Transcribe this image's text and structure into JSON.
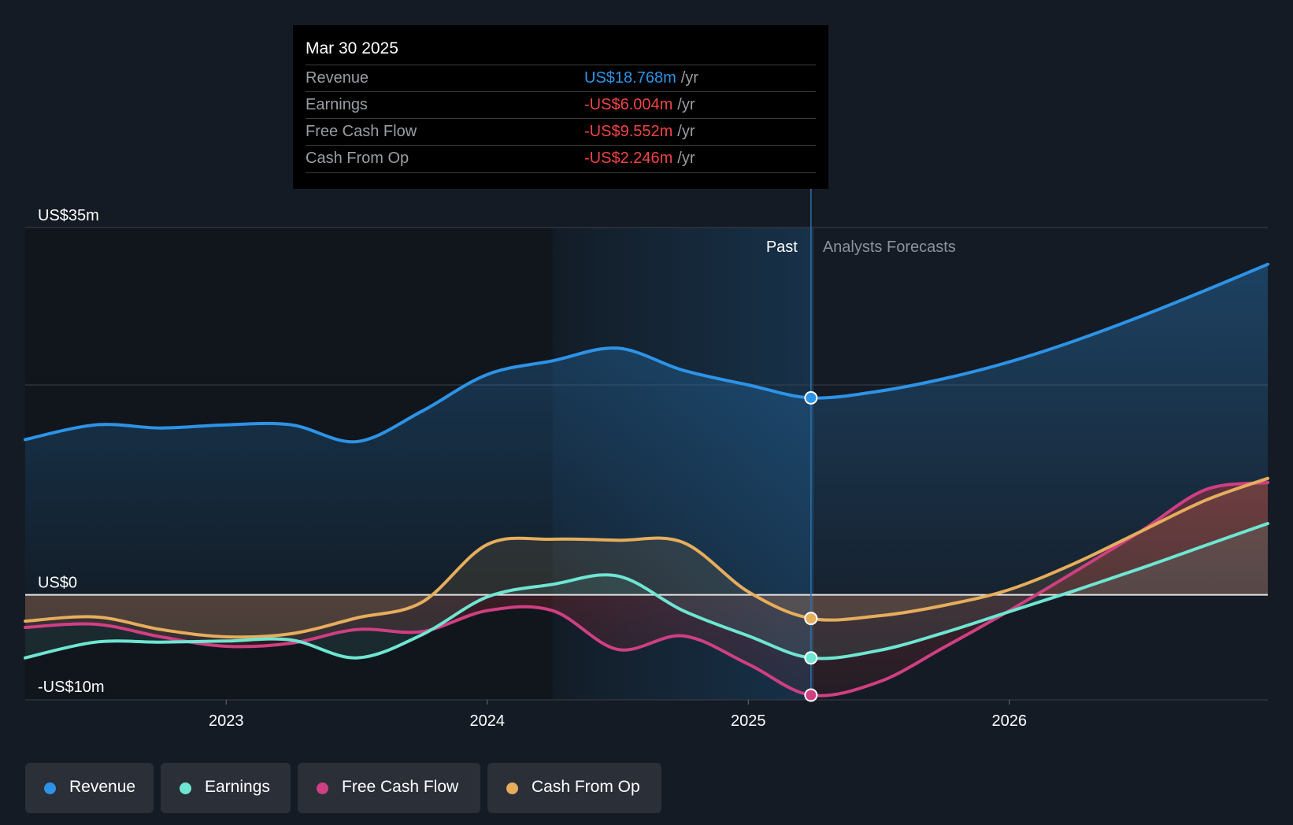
{
  "tooltip": {
    "date": "Mar 30 2025",
    "rows": [
      {
        "label": "Revenue",
        "value": "US$18.768m",
        "unit": "/yr",
        "tone": "blue"
      },
      {
        "label": "Earnings",
        "value": "-US$6.004m",
        "unit": "/yr",
        "tone": "red"
      },
      {
        "label": "Free Cash Flow",
        "value": "-US$9.552m",
        "unit": "/yr",
        "tone": "red"
      },
      {
        "label": "Cash From Op",
        "value": "-US$2.246m",
        "unit": "/yr",
        "tone": "red"
      }
    ]
  },
  "legend": {
    "items": [
      {
        "label": "Revenue",
        "color": "#2d93e6"
      },
      {
        "label": "Earnings",
        "color": "#6ee6d2"
      },
      {
        "label": "Free Cash Flow",
        "color": "#cf3f82"
      },
      {
        "label": "Cash From Op",
        "color": "#e6ad5c"
      }
    ]
  },
  "chart_data": {
    "type": "line",
    "title": "",
    "xlabel": "",
    "ylabel": "",
    "y_tick_labels": [
      "US$35m",
      "US$0",
      "-US$10m"
    ],
    "ylim": [
      -10,
      35
    ],
    "xlim": [
      2022.23,
      2026.99
    ],
    "x_ticks": [
      2023,
      2024,
      2025,
      2026
    ],
    "x_tick_labels": [
      "2023",
      "2024",
      "2025",
      "2026"
    ],
    "past_label": "Past",
    "forecast_label": "Analysts Forecasts",
    "highlight_range": [
      2024.25,
      2025.25
    ],
    "divider_x": 2025.24,
    "marker_x": 2025.24,
    "colors": {
      "revenue": "#2d93e6",
      "earnings": "#6ee6d2",
      "free_cash_flow": "#cf3f82",
      "cash_from_op": "#e6ad5c",
      "negative_fill": "#8c2a30"
    },
    "series": [
      {
        "key": "revenue",
        "name": "Revenue",
        "points": [
          [
            2022.23,
            14.8
          ],
          [
            2022.5,
            16.2
          ],
          [
            2022.75,
            15.9
          ],
          [
            2023.0,
            16.2
          ],
          [
            2023.25,
            16.2
          ],
          [
            2023.5,
            14.6
          ],
          [
            2023.75,
            17.5
          ],
          [
            2024.0,
            21.0
          ],
          [
            2024.25,
            22.3
          ],
          [
            2024.5,
            23.5
          ],
          [
            2024.75,
            21.4
          ],
          [
            2025.0,
            20.0
          ],
          [
            2025.24,
            18.768
          ],
          [
            2025.5,
            19.4
          ],
          [
            2025.75,
            20.6
          ],
          [
            2026.0,
            22.2
          ],
          [
            2026.25,
            24.2
          ],
          [
            2026.5,
            26.5
          ],
          [
            2026.75,
            29.0
          ],
          [
            2026.99,
            31.5
          ]
        ]
      },
      {
        "key": "earnings",
        "name": "Earnings",
        "points": [
          [
            2022.23,
            -6.0
          ],
          [
            2022.5,
            -4.5
          ],
          [
            2022.75,
            -4.5
          ],
          [
            2023.0,
            -4.4
          ],
          [
            2023.25,
            -4.3
          ],
          [
            2023.5,
            -6.0
          ],
          [
            2023.75,
            -3.8
          ],
          [
            2024.0,
            -0.2
          ],
          [
            2024.25,
            1.0
          ],
          [
            2024.5,
            1.8
          ],
          [
            2024.75,
            -1.5
          ],
          [
            2025.0,
            -3.9
          ],
          [
            2025.24,
            -6.004
          ],
          [
            2025.5,
            -5.3
          ],
          [
            2025.75,
            -3.6
          ],
          [
            2026.0,
            -1.6
          ],
          [
            2026.25,
            0.4
          ],
          [
            2026.5,
            2.5
          ],
          [
            2026.75,
            4.7
          ],
          [
            2026.99,
            6.8
          ]
        ]
      },
      {
        "key": "free_cash_flow",
        "name": "Free Cash Flow",
        "points": [
          [
            2022.23,
            -3.1
          ],
          [
            2022.5,
            -2.8
          ],
          [
            2022.75,
            -4.0
          ],
          [
            2023.0,
            -4.9
          ],
          [
            2023.25,
            -4.6
          ],
          [
            2023.5,
            -3.3
          ],
          [
            2023.75,
            -3.5
          ],
          [
            2024.0,
            -1.5
          ],
          [
            2024.25,
            -1.5
          ],
          [
            2024.5,
            -5.2
          ],
          [
            2024.75,
            -3.9
          ],
          [
            2025.0,
            -6.6
          ],
          [
            2025.24,
            -9.552
          ],
          [
            2025.5,
            -8.3
          ],
          [
            2025.75,
            -5.0
          ],
          [
            2026.0,
            -1.5
          ],
          [
            2026.25,
            2.2
          ],
          [
            2026.5,
            6.0
          ],
          [
            2026.75,
            10.0
          ],
          [
            2026.99,
            10.7
          ]
        ]
      },
      {
        "key": "cash_from_op",
        "name": "Cash From Op",
        "points": [
          [
            2022.23,
            -2.5
          ],
          [
            2022.5,
            -2.1
          ],
          [
            2022.75,
            -3.3
          ],
          [
            2023.0,
            -4.0
          ],
          [
            2023.25,
            -3.7
          ],
          [
            2023.5,
            -2.2
          ],
          [
            2023.75,
            -0.7
          ],
          [
            2024.0,
            4.8
          ],
          [
            2024.25,
            5.3
          ],
          [
            2024.5,
            5.2
          ],
          [
            2024.75,
            5.0
          ],
          [
            2025.0,
            0.3
          ],
          [
            2025.24,
            -2.246
          ],
          [
            2025.5,
            -2.0
          ],
          [
            2025.75,
            -1.0
          ],
          [
            2026.0,
            0.5
          ],
          [
            2026.25,
            3.0
          ],
          [
            2026.5,
            6.0
          ],
          [
            2026.75,
            9.0
          ],
          [
            2026.99,
            11.1
          ]
        ]
      }
    ]
  }
}
